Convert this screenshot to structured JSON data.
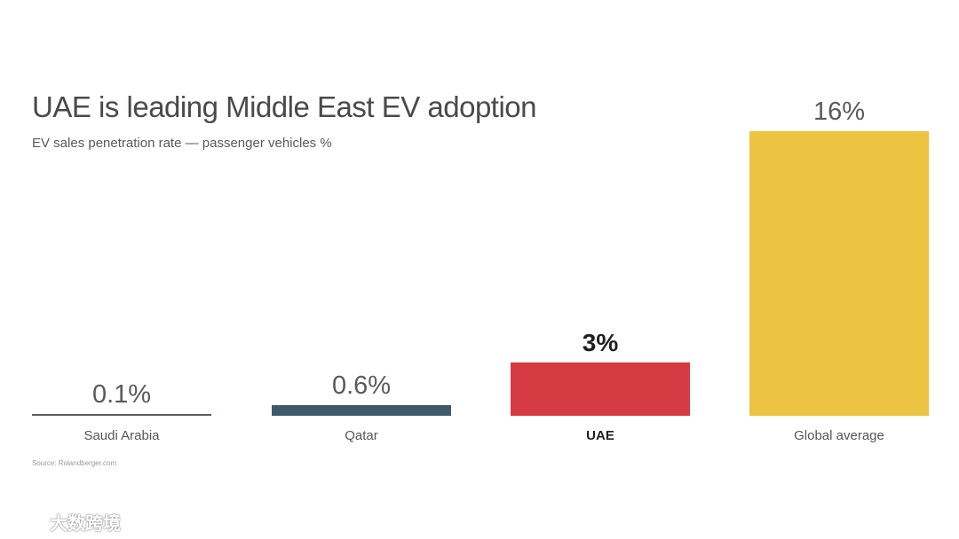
{
  "title": "UAE is leading Middle East EV adoption",
  "subtitle": "EV sales penetration rate — passenger vehicles %",
  "source": "Source: Rolandberger.com",
  "watermark": {
    "text": "大数跨境"
  },
  "colors": {
    "saudi": "#555f66",
    "qatar": "#3e5a6b",
    "uae": "#d63a42",
    "global": "#ecc441"
  },
  "chart_data": {
    "type": "bar",
    "title": "UAE is leading Middle East EV adoption",
    "subtitle": "EV sales penetration rate — passenger vehicles %",
    "xlabel": "",
    "ylabel": "",
    "ylim": [
      0,
      16
    ],
    "grid": false,
    "categories": [
      "Saudi Arabia",
      "Qatar",
      "UAE",
      "Global average"
    ],
    "values": [
      0.1,
      0.6,
      3,
      16
    ],
    "value_labels": [
      "0.1%",
      "0.6%",
      "3%",
      "16%"
    ],
    "highlight": "UAE"
  }
}
